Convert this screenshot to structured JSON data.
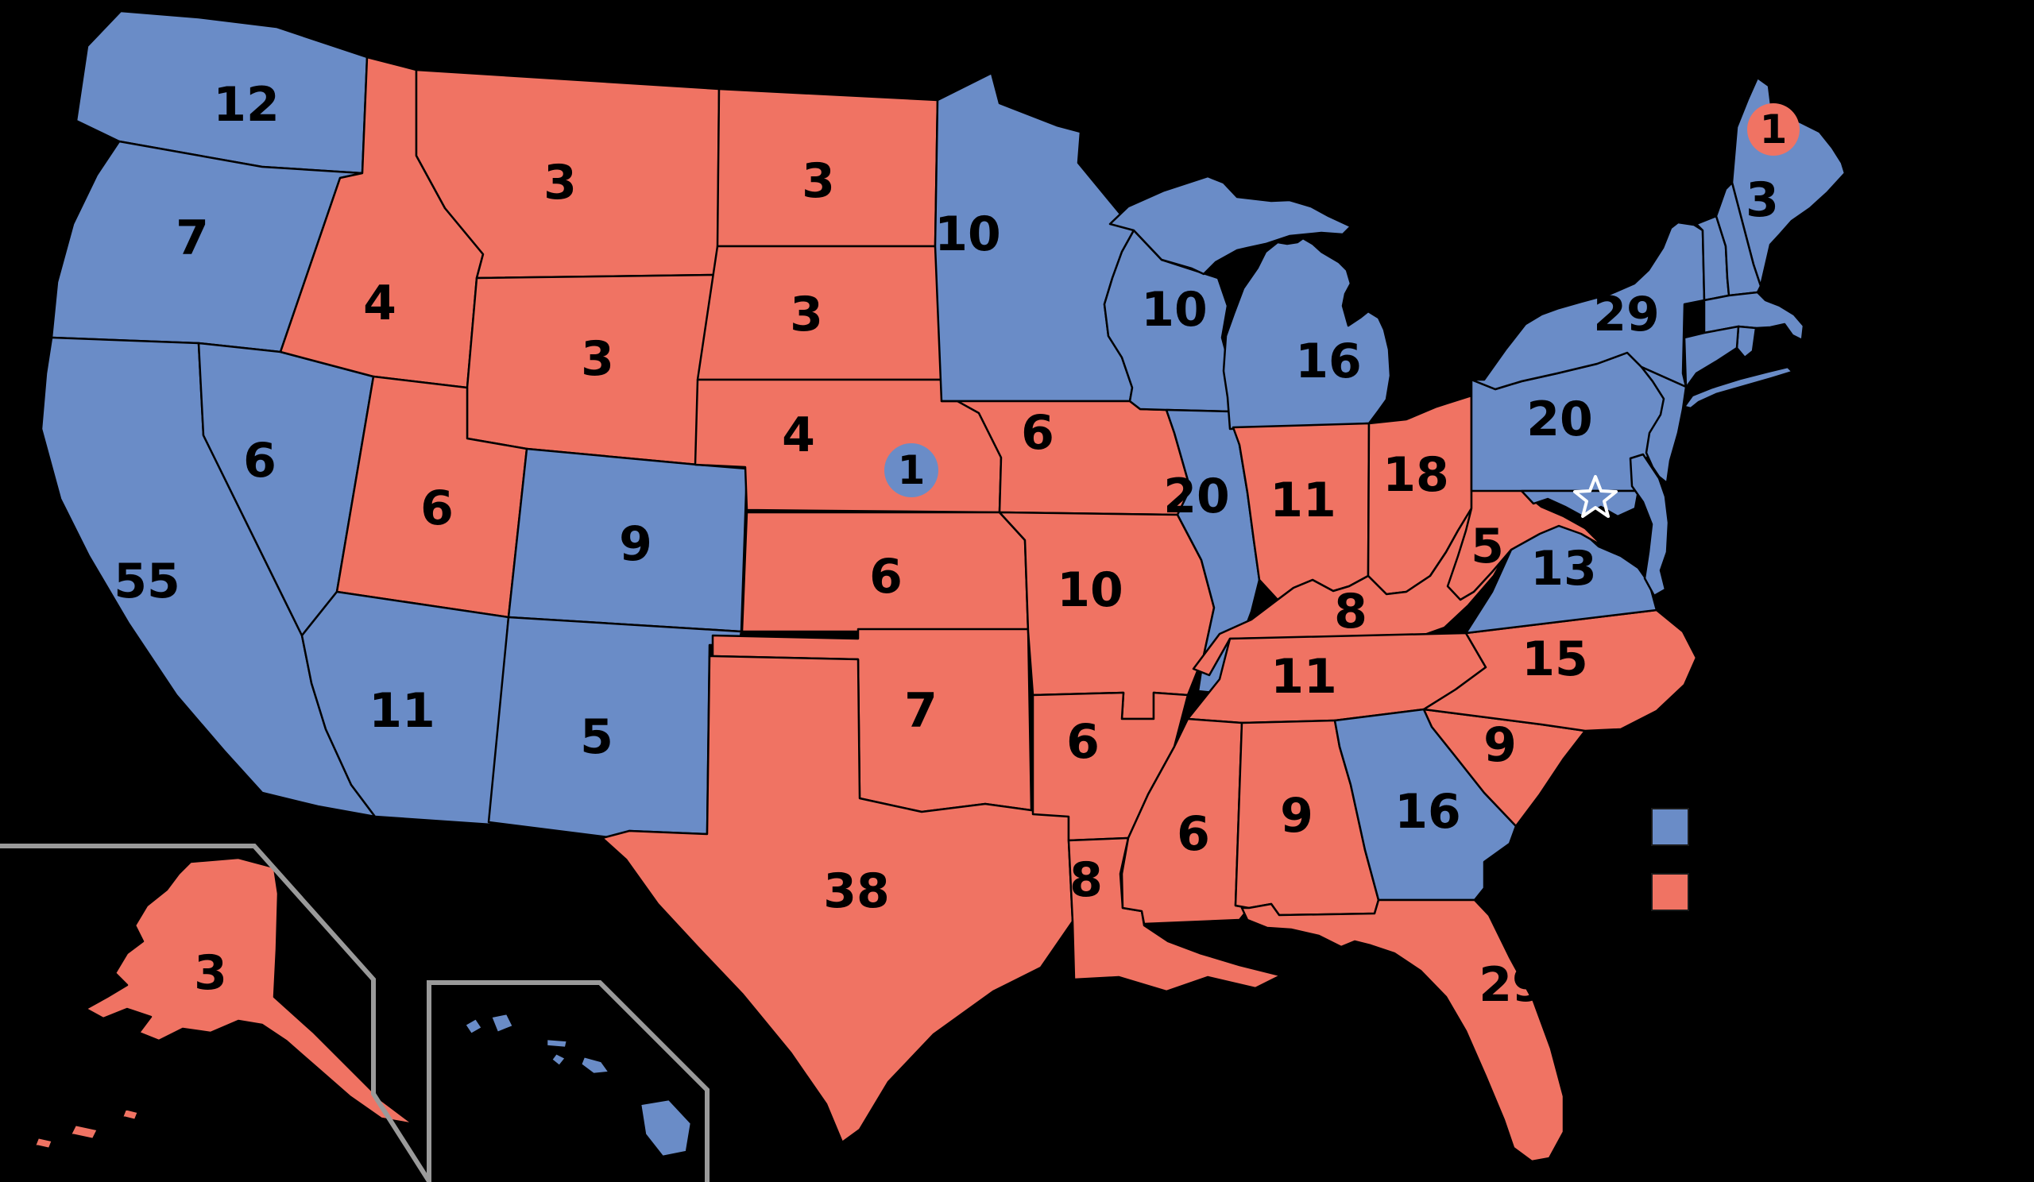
{
  "colors": {
    "democratic": "#6a8cc7",
    "republican": "#f07363",
    "background": "#000000",
    "state_border": "#000000",
    "inset_border": "#9a9a9a",
    "label": "#000000",
    "dc_star": "#ffffff"
  },
  "states": [
    {
      "abbr": "WA",
      "name": "washington",
      "party": "democratic",
      "electoral_votes_label": "12"
    },
    {
      "abbr": "OR",
      "name": "oregon",
      "party": "democratic",
      "electoral_votes_label": "7"
    },
    {
      "abbr": "CA",
      "name": "california",
      "party": "democratic",
      "electoral_votes_label": "55"
    },
    {
      "abbr": "NV",
      "name": "nevada",
      "party": "democratic",
      "electoral_votes_label": "6"
    },
    {
      "abbr": "ID",
      "name": "idaho",
      "party": "republican",
      "electoral_votes_label": "4"
    },
    {
      "abbr": "MT",
      "name": "montana",
      "party": "republican",
      "electoral_votes_label": "3"
    },
    {
      "abbr": "WY",
      "name": "wyoming",
      "party": "republican",
      "electoral_votes_label": "3"
    },
    {
      "abbr": "UT",
      "name": "utah",
      "party": "republican",
      "electoral_votes_label": "6"
    },
    {
      "abbr": "CO",
      "name": "colorado",
      "party": "democratic",
      "electoral_votes_label": "9"
    },
    {
      "abbr": "AZ",
      "name": "arizona",
      "party": "democratic",
      "electoral_votes_label": "11"
    },
    {
      "abbr": "NM",
      "name": "new-mexico",
      "party": "democratic",
      "electoral_votes_label": "5"
    },
    {
      "abbr": "ND",
      "name": "north-dakota",
      "party": "republican",
      "electoral_votes_label": "3"
    },
    {
      "abbr": "SD",
      "name": "south-dakota",
      "party": "republican",
      "electoral_votes_label": "3"
    },
    {
      "abbr": "NE",
      "name": "nebraska",
      "party": "republican",
      "electoral_votes_label": "4"
    },
    {
      "abbr": "KS",
      "name": "kansas",
      "party": "republican",
      "electoral_votes_label": "6"
    },
    {
      "abbr": "OK",
      "name": "oklahoma",
      "party": "republican",
      "electoral_votes_label": "7"
    },
    {
      "abbr": "TX",
      "name": "texas",
      "party": "republican",
      "electoral_votes_label": "38"
    },
    {
      "abbr": "MN",
      "name": "minnesota",
      "party": "democratic",
      "electoral_votes_label": "10"
    },
    {
      "abbr": "IA",
      "name": "iowa",
      "party": "republican",
      "electoral_votes_label": "6"
    },
    {
      "abbr": "MO",
      "name": "missouri",
      "party": "republican",
      "electoral_votes_label": "10"
    },
    {
      "abbr": "AR",
      "name": "arkansas",
      "party": "republican",
      "electoral_votes_label": "6"
    },
    {
      "abbr": "LA",
      "name": "louisiana",
      "party": "republican",
      "electoral_votes_label": "8"
    },
    {
      "abbr": "WI",
      "name": "wisconsin",
      "party": "democratic",
      "electoral_votes_label": "10"
    },
    {
      "abbr": "IL",
      "name": "illinois",
      "party": "democratic",
      "electoral_votes_label": "20"
    },
    {
      "abbr": "MI",
      "name": "michigan",
      "party": "democratic",
      "electoral_votes_label": "16"
    },
    {
      "abbr": "IN",
      "name": "indiana",
      "party": "republican",
      "electoral_votes_label": "11"
    },
    {
      "abbr": "OH",
      "name": "ohio",
      "party": "republican",
      "electoral_votes_label": "18"
    },
    {
      "abbr": "KY",
      "name": "kentucky",
      "party": "republican",
      "electoral_votes_label": "8"
    },
    {
      "abbr": "TN",
      "name": "tennessee",
      "party": "republican",
      "electoral_votes_label": "11"
    },
    {
      "abbr": "MS",
      "name": "mississippi",
      "party": "republican",
      "electoral_votes_label": "6"
    },
    {
      "abbr": "AL",
      "name": "alabama",
      "party": "republican",
      "electoral_votes_label": "9"
    },
    {
      "abbr": "GA",
      "name": "georgia",
      "party": "democratic",
      "electoral_votes_label": "16"
    },
    {
      "abbr": "SC",
      "name": "south-carolina",
      "party": "republican",
      "electoral_votes_label": "9"
    },
    {
      "abbr": "NC",
      "name": "north-carolina",
      "party": "republican",
      "electoral_votes_label": "15"
    },
    {
      "abbr": "FL",
      "name": "florida",
      "party": "republican",
      "electoral_votes_label": "29"
    },
    {
      "abbr": "VA",
      "name": "virginia",
      "party": "democratic",
      "electoral_votes_label": "13"
    },
    {
      "abbr": "WV",
      "name": "west-virginia",
      "party": "republican",
      "electoral_votes_label": "5"
    },
    {
      "abbr": "PA",
      "name": "pennsylvania",
      "party": "democratic",
      "electoral_votes_label": "20"
    },
    {
      "abbr": "NY",
      "name": "new-york",
      "party": "democratic",
      "electoral_votes_label": "29"
    },
    {
      "abbr": "ME",
      "name": "maine",
      "party": "democratic",
      "electoral_votes_label": "3"
    },
    {
      "abbr": "VT",
      "name": "vermont",
      "party": "democratic",
      "electoral_votes_label": ""
    },
    {
      "abbr": "NH",
      "name": "new-hampshire",
      "party": "democratic",
      "electoral_votes_label": ""
    },
    {
      "abbr": "MA",
      "name": "massachusetts",
      "party": "democratic",
      "electoral_votes_label": ""
    },
    {
      "abbr": "RI",
      "name": "rhode-island",
      "party": "democratic",
      "electoral_votes_label": ""
    },
    {
      "abbr": "CT",
      "name": "connecticut",
      "party": "democratic",
      "electoral_votes_label": ""
    },
    {
      "abbr": "LI",
      "name": "long-island-new-york",
      "party": "democratic",
      "electoral_votes_label": ""
    },
    {
      "abbr": "NJ",
      "name": "new-jersey",
      "party": "democratic",
      "electoral_votes_label": ""
    },
    {
      "abbr": "MD",
      "name": "maryland",
      "party": "democratic",
      "electoral_votes_label": ""
    },
    {
      "abbr": "DM",
      "name": "delaware-delmarva",
      "party": "democratic",
      "electoral_votes_label": ""
    },
    {
      "abbr": "AK",
      "name": "alaska",
      "party": "republican",
      "electoral_votes_label": "3"
    },
    {
      "abbr": "HI",
      "name": "hawaii",
      "party": "democratic",
      "electoral_votes_label": ""
    }
  ],
  "districts": [
    {
      "abbr": "ME-02",
      "name": "maine-2nd-district",
      "party": "republican",
      "electoral_votes_label": "1"
    },
    {
      "abbr": "NE-02",
      "name": "nebraska-2nd-district",
      "party": "democratic",
      "electoral_votes_label": "1"
    }
  ],
  "dc_marker": {
    "name": "district-of-columbia",
    "party": "democratic",
    "symbol": "star"
  },
  "legend": {
    "items": [
      {
        "name": "democratic",
        "swatch": "democratic"
      },
      {
        "name": "republican",
        "swatch": "republican"
      }
    ]
  }
}
